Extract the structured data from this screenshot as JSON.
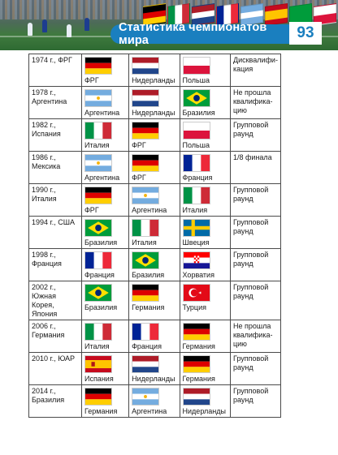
{
  "header": {
    "title": "Статистика чемпионатов мира",
    "page_number": "93"
  },
  "rows": [
    {
      "tournament": "1974 г., ФРГ",
      "first": {
        "country": "ФРГ",
        "flag": "germany-flag"
      },
      "second": {
        "country": "Нидерланды",
        "flag": "netherlands-flag"
      },
      "third": {
        "country": "Польша",
        "flag": "poland-flag"
      },
      "result": "Дисквалифи-\nкация"
    },
    {
      "tournament": "1978 г.,\nАргентина",
      "first": {
        "country": "Аргентина",
        "flag": "argentina-flag"
      },
      "second": {
        "country": "Нидерланды",
        "flag": "netherlands-flag"
      },
      "third": {
        "country": "Бразилия",
        "flag": "brazil-flag"
      },
      "result": "Не прошла\nквалифика-\nцию"
    },
    {
      "tournament": "1982 г., Испания",
      "first": {
        "country": "Италия",
        "flag": "italy-flag"
      },
      "second": {
        "country": "ФРГ",
        "flag": "germany-flag"
      },
      "third": {
        "country": "Польша",
        "flag": "poland-flag"
      },
      "result": "Групповой\nраунд"
    },
    {
      "tournament": "1986 г., Мексика",
      "first": {
        "country": "Аргентина",
        "flag": "argentina-flag"
      },
      "second": {
        "country": "ФРГ",
        "flag": "germany-flag"
      },
      "third": {
        "country": "Франция",
        "flag": "france-flag"
      },
      "result": "1/8 финала"
    },
    {
      "tournament": "1990 г., Италия",
      "first": {
        "country": "ФРГ",
        "flag": "germany-flag"
      },
      "second": {
        "country": "Аргентина",
        "flag": "argentina-flag"
      },
      "third": {
        "country": "Италия",
        "flag": "italy-flag"
      },
      "result": "Групповой\nраунд"
    },
    {
      "tournament": "1994 г., США",
      "first": {
        "country": "Бразилия",
        "flag": "brazil-flag"
      },
      "second": {
        "country": "Италия",
        "flag": "italy-flag"
      },
      "third": {
        "country": "Швеция",
        "flag": "sweden-flag"
      },
      "result": "Групповой\nраунд"
    },
    {
      "tournament": "1998 г., Франция",
      "first": {
        "country": "Франция",
        "flag": "france-flag"
      },
      "second": {
        "country": "Бразилия",
        "flag": "brazil-flag"
      },
      "third": {
        "country": "Хорватия",
        "flag": "croatia-flag"
      },
      "result": "Групповой\nраунд"
    },
    {
      "tournament": "2002 г., Южная\nКорея, Япония",
      "first": {
        "country": "Бразилия",
        "flag": "brazil-flag"
      },
      "second": {
        "country": "Германия",
        "flag": "germany-flag"
      },
      "third": {
        "country": "Турция",
        "flag": "turkey-flag"
      },
      "result": "Групповой\nраунд"
    },
    {
      "tournament": "2006 г., Германия",
      "first": {
        "country": "Италия",
        "flag": "italy-flag"
      },
      "second": {
        "country": "Франция",
        "flag": "france-flag"
      },
      "third": {
        "country": "Германия",
        "flag": "germany-flag"
      },
      "result": "Не прошла\nквалифика-\nцию"
    },
    {
      "tournament": "2010 г., ЮАР",
      "first": {
        "country": "Испания",
        "flag": "spain-flag"
      },
      "second": {
        "country": "Нидерланды",
        "flag": "netherlands-flag"
      },
      "third": {
        "country": "Германия",
        "flag": "germany-flag"
      },
      "result": "Групповой\nраунд"
    },
    {
      "tournament": "2014 г., Бразилия",
      "first": {
        "country": "Германия",
        "flag": "germany-flag"
      },
      "second": {
        "country": "Аргентина",
        "flag": "argentina-flag"
      },
      "third": {
        "country": "Нидерланды",
        "flag": "netherlands-flag"
      },
      "result": "Групповой\nраунд"
    }
  ]
}
